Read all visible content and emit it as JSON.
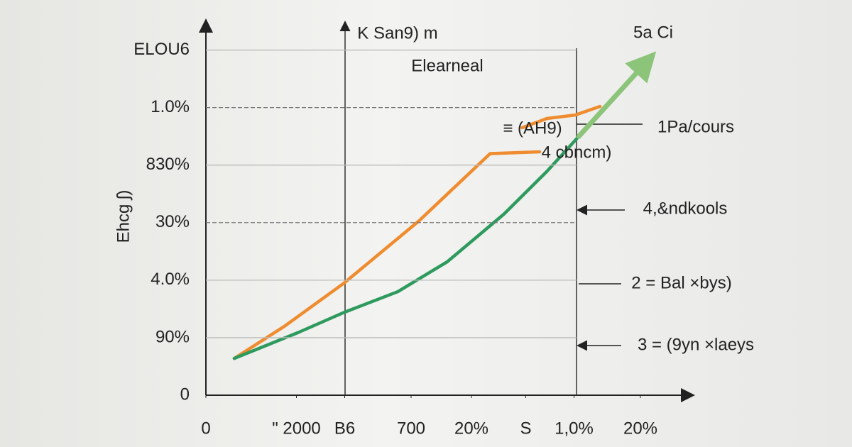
{
  "chart_data": {
    "type": "line",
    "title": "K San9) m",
    "subtitle": "Elearneal",
    "corner_label": "5a Ci",
    "y_label": "Ehcg ʃ)",
    "annotations": [
      "≡ (AH9)",
      "4 cbncm)",
      "1Pa/cours",
      "4,&ndkools",
      "2 = Bal ×bys)",
      "3 = (9yn ×laeys"
    ],
    "xlim": [
      0,
      8
    ],
    "ylim": [
      0,
      6.5
    ],
    "xticks": [
      {
        "value": 0,
        "label": "0"
      },
      {
        "value": 1.5,
        "label": "\" 2000"
      },
      {
        "value": 2.3,
        "label": "B6"
      },
      {
        "value": 3.4,
        "label": "700"
      },
      {
        "value": 4.4,
        "label": "20%"
      },
      {
        "value": 5.3,
        "label": "S"
      },
      {
        "value": 6.1,
        "label": "1,0%"
      },
      {
        "value": 7.2,
        "label": "20%"
      }
    ],
    "yticks": [
      {
        "value": 0,
        "label": "0"
      },
      {
        "value": 1,
        "label": "90%"
      },
      {
        "value": 2,
        "label": "4.0%"
      },
      {
        "value": 3,
        "label": "30%"
      },
      {
        "value": 4,
        "label": "830%"
      },
      {
        "value": 5,
        "label": "1.0%"
      },
      {
        "value": 6,
        "label": "ELOU6"
      }
    ],
    "grid": true,
    "series": [
      {
        "color": "#ef8c2f",
        "x": [
          0.47,
          1.29,
          2.29,
          3.53,
          4.71,
          5.53,
          null,
          5.24,
          5.65,
          6.12,
          6.53
        ],
        "values": [
          0.64,
          1.19,
          1.95,
          3.03,
          4.2,
          4.23,
          null,
          4.65,
          4.81,
          4.87,
          5.02
        ]
      },
      {
        "color": "#2e9a5e",
        "x": [
          0.47,
          1.53,
          2.29,
          3.18,
          4,
          4.94,
          5.65,
          6.18
        ],
        "values": [
          0.64,
          1.09,
          1.44,
          1.8,
          2.32,
          3.15,
          3.89,
          4.5
        ]
      },
      {
        "color": "#8cc47a",
        "x": [
          6.18,
          7.35
        ],
        "values": [
          4.5,
          5.85
        ]
      }
    ]
  }
}
